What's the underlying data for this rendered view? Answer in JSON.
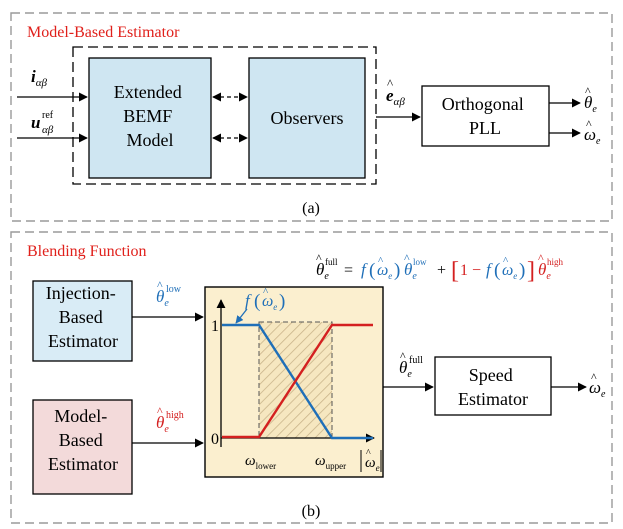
{
  "panel_a": {
    "title": "Model-Based Estimator",
    "caption": "(a)",
    "inputs": {
      "current": {
        "base": "i",
        "sub": "αβ"
      },
      "voltage": {
        "base": "u",
        "sub": "αβ",
        "sup": "ref"
      }
    },
    "bemf_model": {
      "lines": [
        "Extended",
        "BEMF",
        "Model"
      ]
    },
    "observers": {
      "label": "Observers"
    },
    "bemf_signal": {
      "base": "e",
      "sub": "αβ"
    },
    "pll": {
      "lines": [
        "Orthogonal",
        "PLL"
      ]
    },
    "outputs": {
      "theta": {
        "base": "θ",
        "sub": "e"
      },
      "omega": {
        "base": "ω",
        "sub": "e"
      }
    }
  },
  "panel_b": {
    "title": "Blending Function",
    "caption": "(b)",
    "equation": {
      "lhs": {
        "base": "θ",
        "sub": "e",
        "sup": "full"
      },
      "equals": "=",
      "f_term": "f",
      "omega": {
        "base": "ω",
        "sub": "e"
      },
      "theta_low": {
        "base": "θ",
        "sub": "e",
        "sup": "low"
      },
      "plus": "+",
      "one_minus": "1 −",
      "theta_high": {
        "base": "θ",
        "sub": "e",
        "sup": "high"
      }
    },
    "injection_block": {
      "lines": [
        "Injection-",
        "Based",
        "Estimator"
      ]
    },
    "model_block": {
      "lines": [
        "Model-",
        "Based",
        "Estimator"
      ]
    },
    "theta_low": {
      "base": "θ",
      "sub": "e",
      "sup": "low"
    },
    "theta_high": {
      "base": "θ",
      "sub": "e",
      "sup": "high"
    },
    "blend_plot": {
      "f_label": "f",
      "f_arg": {
        "base": "ω",
        "sub": "e"
      },
      "tick_one": "1",
      "tick_zero": "0",
      "omega_lower": {
        "base": "ω",
        "sub": "lower"
      },
      "omega_upper": {
        "base": "ω",
        "sub": "upper"
      },
      "axis_label": {
        "base": "ω",
        "sub": "e"
      }
    },
    "theta_full": {
      "base": "θ",
      "sub": "e",
      "sup": "full"
    },
    "speed_block": {
      "lines": [
        "Speed",
        "Estimator"
      ]
    },
    "omega_out": {
      "base": "ω",
      "sub": "e"
    }
  },
  "colors": {
    "title_red": "#e0201b",
    "blue": "#1f6fb8",
    "red": "#d42020",
    "bemf_fill": "#cfe6f2",
    "observer_fill": "#cfe6f2",
    "injection_fill": "#d9ecf6",
    "model_fill": "#f3dada",
    "plot_fill": "#fbefcf",
    "frame_dash": "#9a9a9a"
  }
}
